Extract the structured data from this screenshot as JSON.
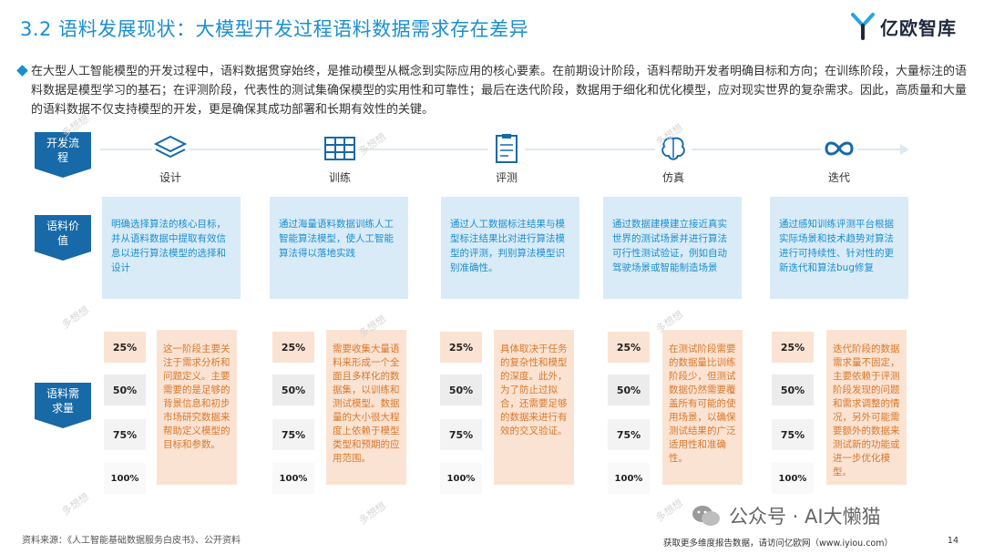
{
  "header": {
    "title": "3.2 语料发展现状：大模型开发过程语料数据需求存在差异",
    "logo_text": "亿欧智库"
  },
  "intro": "在大型人工智能模型的开发过程中，语料数据贯穿始终，是推动模型从概念到实际应用的核心要素。在前期设计阶段，语料帮助开发者明确目标和方向；在训练阶段，大量标注的语料数据是模型学习的基石；在评测阶段，代表性的测试集确保模型的实用性和可靠性；最后在迭代阶段，数据用于细化和优化模型，应对现实世界的复杂需求。因此，高质量和大量的语料数据不仅支持模型的开发，更是确保其成功部署和长期有效性的关键。",
  "row_labels": {
    "flow": "开发流程",
    "value": "语料价值",
    "demand": "语料需求量"
  },
  "stages": [
    {
      "name": "设计",
      "icon": "layers-icon",
      "value": "明确选择算法的核心目标，并从语料数据中提取有效信息以进行算法模型的选择和设计",
      "demand": "这一阶段主要关注于需求分析和问题定义。主要需要的是足够的背景信息和初步市场研究数据来帮助定义模型的目标和参数。"
    },
    {
      "name": "训练",
      "icon": "grid-icon",
      "value": "通过海量语料数据训练人工智能算法模型，使人工智能算法得以落地实践",
      "demand": "需要收集大量语料来形成一个全面且多样化的数据集，以训练和测试模型。数据量的大小很大程度上依赖于模型类型和预期的应用范围。"
    },
    {
      "name": "评测",
      "icon": "clipboard-icon",
      "value": "通过人工数据标注结果与模型标注结果比对进行算法模型的评测，判别算法模型识别准确性。",
      "demand": "具体取决于任务的复杂性和模型的深度。此外，为了防止过拟合，还需要足够的数据来进行有效的交叉验证。"
    },
    {
      "name": "仿真",
      "icon": "brain-icon",
      "value": "通过数据建模建立接近真实世界的测试场景并进行算法可行性测试验证，例如自动驾驶场景或智能制造场景",
      "demand": "在测试阶段需要的数据量比训练阶段少，但测试数据仍然需要覆盖所有可能的使用场景，以确保测试结果的广泛适用性和准确性。"
    },
    {
      "name": "迭代",
      "icon": "infinity-icon",
      "value": "通过感知训练评测平台根据实际场景和技术趋势对算法进行可持续性、针对性的更新迭代和算法bug修复",
      "demand": "迭代阶段的数据需求量不固定，主要依赖于评测阶段发现的问题和需求调整的情况，另外可能需要额外的数据来测试新的功能或进一步优化模型。"
    }
  ],
  "percent_levels": [
    "25%",
    "50%",
    "75%",
    "100%"
  ],
  "watermark": "多想想",
  "footer": {
    "source": "资料来源：《人工智能基础数据服务白皮书》、公开资料",
    "wechat": "公众号 · AI大懒猫",
    "more": "获取更多维度报告数据，请访问亿欧网（www.iyiou.com）",
    "page": "14"
  },
  "colors": {
    "accent": "#1a8fd0",
    "label_bg": "#1769a8",
    "value_bg": "#d9ebf7",
    "demand_bg": "#fbe3d3",
    "demand_text": "#d9782b"
  }
}
